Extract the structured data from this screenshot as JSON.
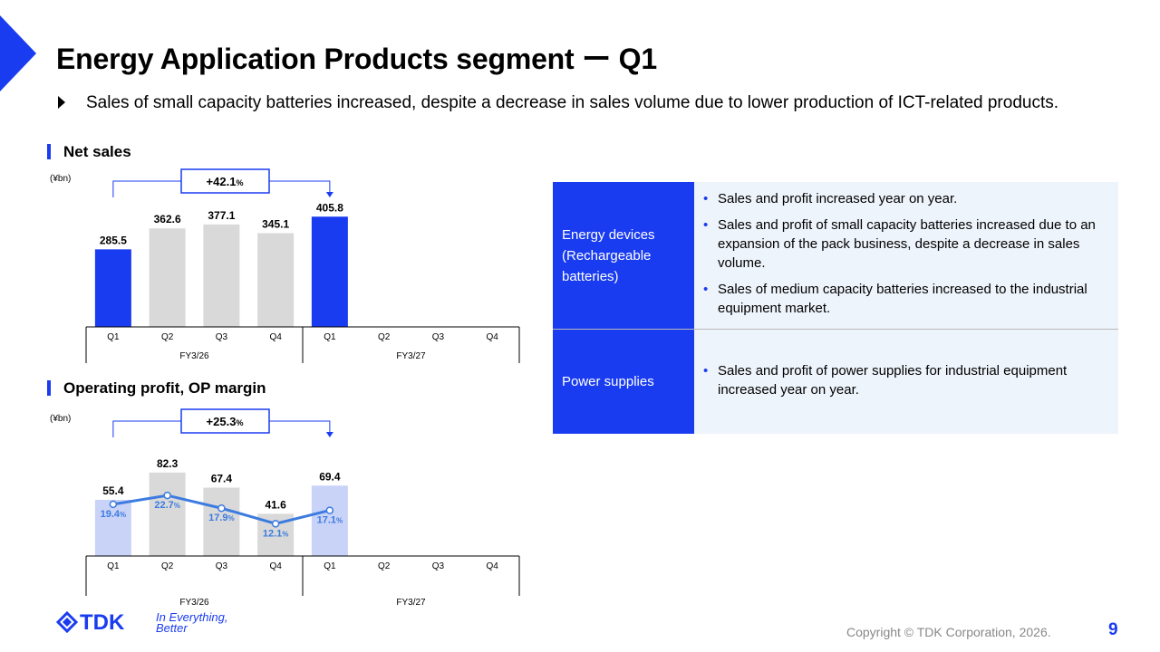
{
  "title": "Energy Application Products segment ー Q1",
  "summary": "Sales of small capacity batteries increased, despite a decrease in sales volume due to lower production of ICT-related products.",
  "net_sales": {
    "heading": "Net sales",
    "unit": "(¥bn)",
    "growth_value": "+42.1",
    "growth_unit": "%"
  },
  "operating_profit": {
    "heading": "Operating profit, OP margin",
    "unit": "(¥bn)",
    "growth_value": "+25.3",
    "growth_unit": "%"
  },
  "chart_data": [
    {
      "type": "bar",
      "categories": [
        "Q1",
        "Q2",
        "Q3",
        "Q4",
        "Q1",
        "Q2",
        "Q3",
        "Q4"
      ],
      "groups": [
        "FY3/26",
        "FY3/27"
      ],
      "values": [
        285.5,
        362.6,
        377.1,
        345.1,
        405.8,
        null,
        null,
        null
      ],
      "labels": [
        "285.5",
        "362.6",
        "377.1",
        "345.1",
        "405.8"
      ],
      "highlight": [
        true,
        false,
        false,
        false,
        true,
        false,
        false,
        false
      ],
      "ylabel": "(¥bn)",
      "title": "Net sales",
      "annotation": "+42.1%",
      "ylim": [
        0,
        460
      ]
    },
    {
      "type": "bar",
      "categories": [
        "Q1",
        "Q2",
        "Q3",
        "Q4",
        "Q1",
        "Q2",
        "Q3",
        "Q4"
      ],
      "groups": [
        "FY3/26",
        "FY3/27"
      ],
      "values": [
        55.4,
        82.3,
        67.4,
        41.6,
        69.4,
        null,
        null,
        null
      ],
      "labels": [
        "55.4",
        "82.3",
        "67.4",
        "41.6",
        "69.4"
      ],
      "margin_values": [
        19.4,
        22.7,
        17.9,
        12.1,
        17.1
      ],
      "margin_labels": [
        "19.4",
        "22.7",
        "17.9",
        "12.1",
        "17.1"
      ],
      "margin_unit": "%",
      "highlight": [
        true,
        false,
        false,
        false,
        true,
        false,
        false,
        false
      ],
      "ylabel": "(¥bn)",
      "title": "Operating profit, OP margin",
      "annotation": "+25.3%",
      "ylim": [
        0,
        100
      ],
      "margin_ylim": [
        0,
        38
      ]
    }
  ],
  "table": [
    {
      "label": "Energy devices (Rechargeable batteries)",
      "points": [
        "Sales and profit increased year on year.",
        "Sales and profit of small capacity batteries increased due to an expansion of the pack business, despite a decrease in sales volume.",
        "Sales of medium capacity batteries increased to the industrial equipment market."
      ]
    },
    {
      "label": "Power supplies",
      "points": [
        "Sales and profit of power supplies for industrial equipment increased year on year."
      ]
    }
  ],
  "logo": {
    "brand": "TDK",
    "tagline_1": "In Everything,",
    "tagline_2": "Better"
  },
  "footer": "Copyright © TDK Corporation, 2026.",
  "page_number": "9",
  "colors": {
    "accent": "#1a3cf0",
    "bar_grey": "#d9d9d9",
    "bar_light_blue": "#c9d3f8",
    "line_blue": "#3c7be0",
    "table_bg": "#eef4fb"
  }
}
